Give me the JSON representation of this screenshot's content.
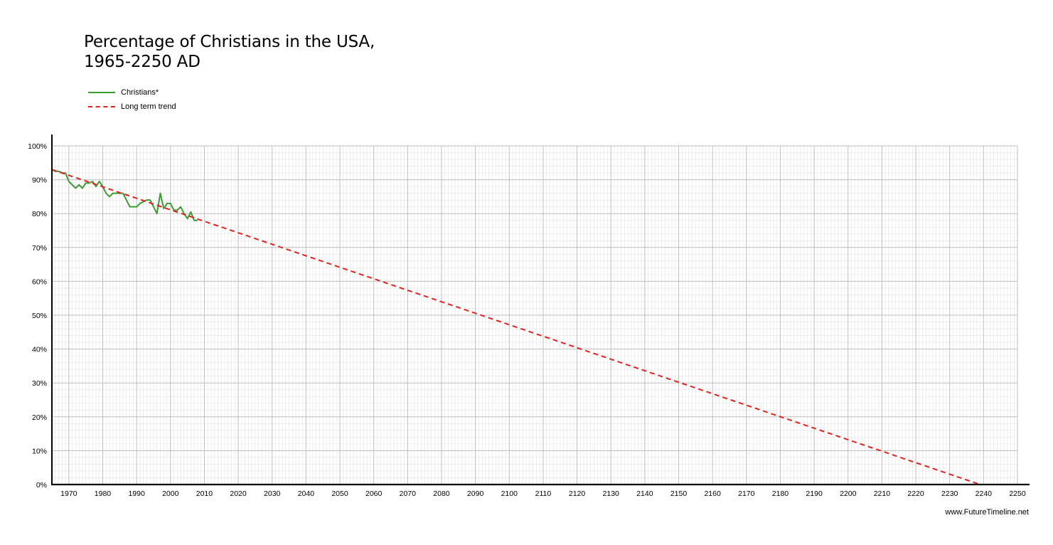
{
  "chart_data": {
    "type": "line",
    "title_lines": [
      "Percentage of Christians in the USA,",
      "1965-2250 AD"
    ],
    "xlabel": "",
    "ylabel": "",
    "xlim": [
      1965,
      2250
    ],
    "ylim": [
      0,
      100
    ],
    "x_ticks": [
      1970,
      1980,
      1990,
      2000,
      2010,
      2020,
      2030,
      2040,
      2050,
      2060,
      2070,
      2080,
      2090,
      2100,
      2110,
      2120,
      2130,
      2140,
      2150,
      2160,
      2170,
      2180,
      2190,
      2200,
      2210,
      2220,
      2230,
      2240,
      2250
    ],
    "y_ticks": [
      0,
      10,
      20,
      30,
      40,
      50,
      60,
      70,
      80,
      90,
      100
    ],
    "y_tick_suffix": "%",
    "grid": true,
    "legend_position": "top-left",
    "series": [
      {
        "name": "Christians*",
        "style": "solid",
        "color": "#3e9a33",
        "x": [
          1965,
          1966,
          1967,
          1968,
          1969,
          1970,
          1971,
          1972,
          1973,
          1974,
          1975,
          1976,
          1977,
          1978,
          1979,
          1980,
          1981,
          1982,
          1983,
          1984,
          1985,
          1986,
          1987,
          1988,
          1989,
          1990,
          1991,
          1992,
          1993,
          1994,
          1995,
          1996,
          1997,
          1998,
          1999,
          2000,
          2001,
          2002,
          2003,
          2004,
          2005,
          2006,
          2007,
          2008
        ],
        "y": [
          93,
          92.5,
          92.5,
          92,
          92,
          89.5,
          88.5,
          87.5,
          88.5,
          87.5,
          89,
          89,
          89.5,
          88,
          89.5,
          88,
          86,
          85,
          86,
          86,
          86,
          86,
          84,
          82,
          82,
          82,
          83,
          83.5,
          84,
          84,
          82,
          80,
          86,
          81.5,
          83,
          83,
          81,
          81,
          82,
          80,
          78.5,
          80.5,
          78,
          78
        ]
      },
      {
        "name": "Long term trend",
        "style": "dashed",
        "color": "#e1221e",
        "x": [
          1965,
          2239
        ],
        "y": [
          93,
          0
        ]
      }
    ]
  },
  "credit": "www.FutureTimeline.net"
}
